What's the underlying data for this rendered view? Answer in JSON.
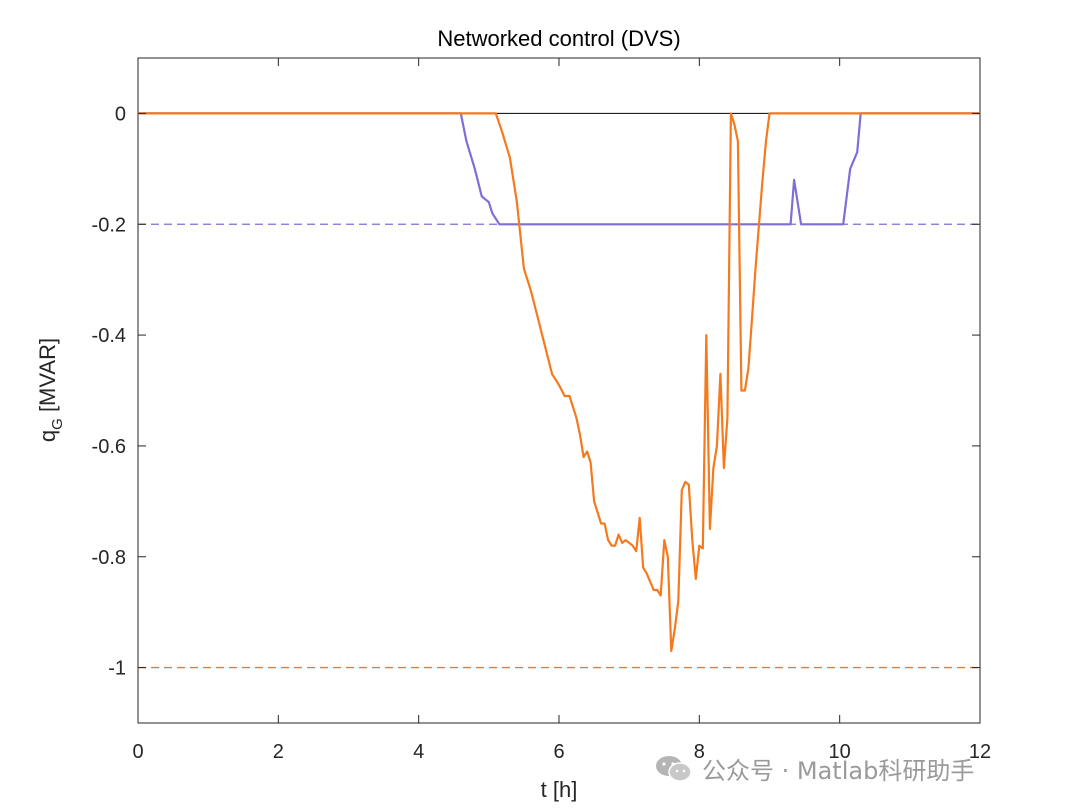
{
  "chart_data": {
    "type": "line",
    "title": "Networked control (DVS)",
    "xlabel": "t [h]",
    "ylabel_main": "q",
    "ylabel_sub": "G",
    "ylabel_rest": " [MVAR]",
    "xlim": [
      0,
      12
    ],
    "ylim": [
      -1.1,
      0.1
    ],
    "xticks": [
      0,
      2,
      4,
      6,
      8,
      10,
      12
    ],
    "xtick_labels": [
      "0",
      "2",
      "4",
      "6",
      "8",
      "10",
      "12"
    ],
    "yticks": [
      0,
      -0.2,
      -0.4,
      -0.6,
      -0.8,
      -1
    ],
    "ytick_labels": [
      "0",
      "-0.2",
      "-0.4",
      "-0.6",
      "-0.8",
      "-1"
    ],
    "grid": false,
    "reference_lines": [
      {
        "y": 0,
        "color": "#000000",
        "style": "solid"
      },
      {
        "y": -0.2,
        "color": "#7E6FD6",
        "style": "dashed"
      },
      {
        "y": -1,
        "color": "#F57A1E",
        "style": "dashed"
      }
    ],
    "series": [
      {
        "color": "#7E6FD6",
        "x": [
          0,
          4.6,
          4.68,
          4.8,
          4.9,
          4.95,
          5.0,
          5.05,
          5.15,
          6.0,
          7.0,
          8.0,
          9.0,
          9.3,
          9.35,
          9.4,
          9.45,
          9.6,
          10.05,
          10.1,
          10.15,
          10.25,
          10.3,
          12
        ],
        "y": [
          0,
          0,
          -0.05,
          -0.1,
          -0.15,
          -0.155,
          -0.16,
          -0.18,
          -0.2,
          -0.2,
          -0.2,
          -0.2,
          -0.2,
          -0.2,
          -0.12,
          -0.16,
          -0.2,
          -0.2,
          -0.2,
          -0.15,
          -0.1,
          -0.07,
          0,
          0
        ]
      },
      {
        "color": "#F57A1E",
        "x": [
          0,
          4.85,
          5.1,
          5.18,
          5.3,
          5.4,
          5.5,
          5.6,
          5.7,
          5.8,
          5.9,
          6.0,
          6.08,
          6.15,
          6.2,
          6.25,
          6.3,
          6.35,
          6.4,
          6.45,
          6.5,
          6.55,
          6.6,
          6.65,
          6.7,
          6.75,
          6.8,
          6.85,
          6.9,
          6.95,
          7.0,
          7.05,
          7.1,
          7.15,
          7.2,
          7.25,
          7.3,
          7.35,
          7.4,
          7.45,
          7.5,
          7.55,
          7.6,
          7.65,
          7.7,
          7.75,
          7.8,
          7.85,
          7.9,
          7.95,
          8.0,
          8.05,
          8.1,
          8.15,
          8.2,
          8.25,
          8.3,
          8.35,
          8.4,
          8.45,
          8.5,
          8.55,
          8.6,
          8.65,
          8.7,
          8.75,
          8.8,
          8.85,
          8.9,
          8.95,
          9.0,
          9.05,
          9.1,
          9.15,
          9.2,
          9.25,
          9.3,
          9.35,
          9.4,
          9.45,
          9.5,
          9.55,
          9.6,
          9.65,
          9.7,
          9.75,
          9.8,
          9.85,
          9.9,
          9.95,
          10.0,
          10.05,
          10.1,
          10.2,
          12
        ],
        "y": [
          0,
          0,
          0,
          -0.03,
          -0.08,
          -0.16,
          -0.28,
          -0.32,
          -0.37,
          -0.42,
          -0.47,
          -0.49,
          -0.51,
          -0.51,
          -0.53,
          -0.55,
          -0.58,
          -0.62,
          -0.61,
          -0.63,
          -0.7,
          -0.72,
          -0.74,
          -0.74,
          -0.77,
          -0.78,
          -0.78,
          -0.76,
          -0.775,
          -0.77,
          -0.775,
          -0.78,
          -0.79,
          -0.73,
          -0.82,
          -0.83,
          -0.845,
          -0.86,
          -0.86,
          -0.87,
          -0.77,
          -0.8,
          -0.97,
          -0.93,
          -0.88,
          -0.68,
          -0.665,
          -0.67,
          -0.77,
          -0.84,
          -0.78,
          -0.785,
          -0.4,
          -0.75,
          -0.64,
          -0.6,
          -0.47,
          -0.64,
          -0.55,
          0,
          -0.02,
          -0.05,
          -0.5,
          -0.5,
          -0.46,
          -0.37,
          -0.28,
          -0.2,
          -0.12,
          -0.05,
          0,
          0,
          0,
          0,
          0,
          0,
          0,
          0,
          0,
          0,
          0,
          0,
          0,
          0,
          0,
          0,
          0,
          0,
          0,
          0,
          0,
          0,
          0,
          0,
          0
        ]
      }
    ]
  },
  "watermark": {
    "text": "公众号 · Matlab科研助手",
    "icon": "wechat-icon"
  }
}
